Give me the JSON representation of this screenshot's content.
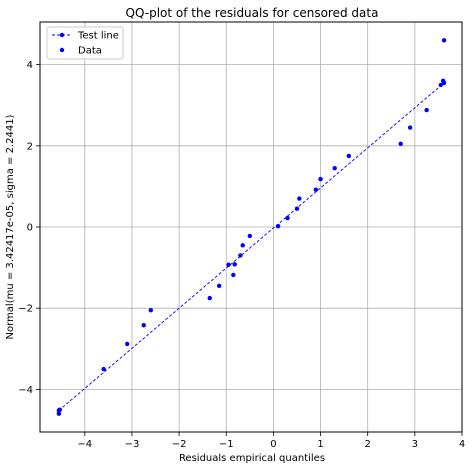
{
  "chart_data": {
    "type": "scatter",
    "title": "QQ-plot of the residuals for censored data",
    "xlabel": "Residuals empirical quantiles",
    "ylabel": "Normal(mu = 3.42417e-05, sigma = 2.2441)",
    "xlim": [
      -4.95,
      4.0
    ],
    "ylim": [
      -5.05,
      5.05
    ],
    "xticks": [
      -4,
      -3,
      -2,
      -1,
      0,
      1,
      2,
      3,
      4
    ],
    "yticks": [
      -4,
      -2,
      0,
      2,
      4
    ],
    "xtick_labels": [
      "−4",
      "−3",
      "−2",
      "−1",
      "0",
      "1",
      "2",
      "3",
      "4"
    ],
    "ytick_labels": [
      "−4",
      "−2",
      "0",
      "2",
      "4"
    ],
    "grid": true,
    "legend": {
      "placement": "top-left",
      "entries": [
        "Test line",
        "Data"
      ]
    },
    "colors": {
      "series": "#0000ff"
    },
    "series": [
      {
        "name": "Test line",
        "style": "dashed-line-with-markers",
        "x": [
          -4.55,
          3.62
        ],
        "y": [
          -4.52,
          3.55
        ]
      },
      {
        "name": "Data",
        "style": "points",
        "x": [
          -4.55,
          -4.53,
          -3.6,
          -3.1,
          -2.75,
          -2.6,
          -1.35,
          -1.15,
          -0.95,
          -0.85,
          -0.82,
          -0.7,
          -0.65,
          -0.5,
          0.1,
          0.3,
          0.5,
          0.55,
          0.9,
          1.0,
          1.3,
          1.6,
          2.7,
          2.9,
          3.25,
          3.55,
          3.6,
          3.62
        ],
        "y": [
          -4.6,
          -4.5,
          -3.5,
          -2.88,
          -2.42,
          -2.05,
          -1.75,
          -1.45,
          -0.93,
          -1.18,
          -0.92,
          -0.7,
          -0.45,
          -0.22,
          0.02,
          0.22,
          0.45,
          0.7,
          0.92,
          1.18,
          1.45,
          1.75,
          2.05,
          2.45,
          2.88,
          3.5,
          3.6,
          4.6
        ]
      }
    ]
  }
}
